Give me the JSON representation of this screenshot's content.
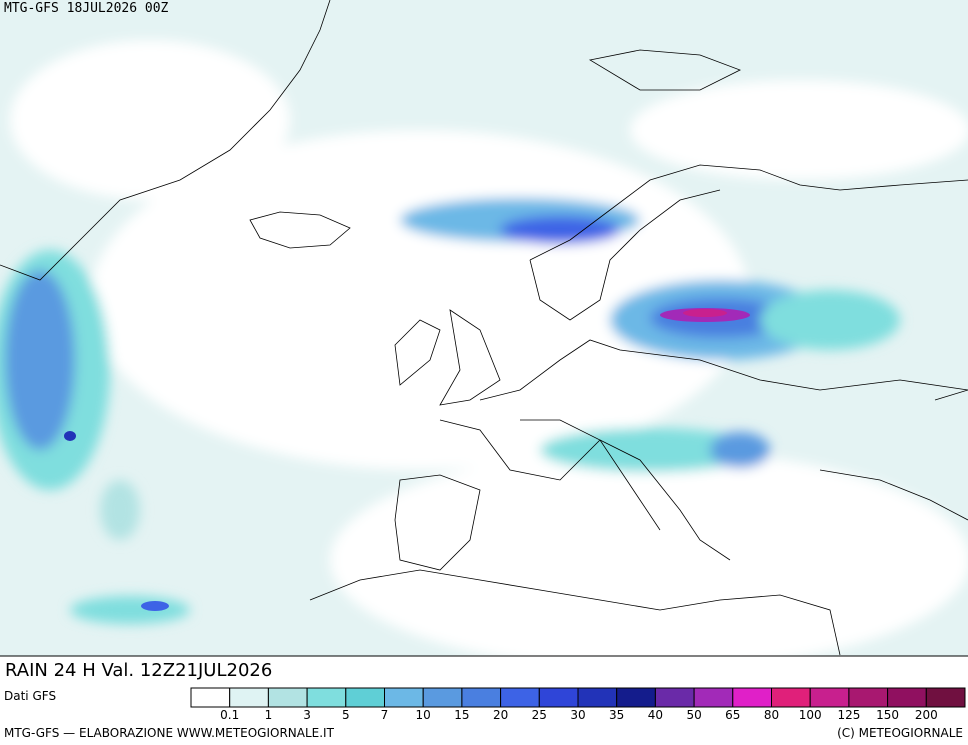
{
  "header": {
    "title": "MTG-GFS 18JUL2026 00Z"
  },
  "caption": "RAIN 24 H Val. 12Z21JUL2026",
  "source": "Dati GFS",
  "legend": {
    "colors": [
      "#ffffff",
      "#dff3f3",
      "#b2e3e3",
      "#7fdede",
      "#5fcfd6",
      "#6cb8e6",
      "#5a9ae0",
      "#4a7fe0",
      "#3d63e6",
      "#2f45d8",
      "#2233b8",
      "#141c8c",
      "#6a2aa8",
      "#a22ab8",
      "#e020c8",
      "#e0207a",
      "#c8208e",
      "#a81870",
      "#901060",
      "#701040"
    ],
    "labels": [
      0.1,
      1,
      3,
      5,
      7,
      10,
      15,
      20,
      25,
      30,
      35,
      40,
      50,
      65,
      80,
      100,
      125,
      150,
      200
    ]
  },
  "footer": {
    "left": "MTG-GFS — ELABORAZIONE WWW.METEOGIORNALE.IT",
    "right": "(C) METEOGIORNALE"
  }
}
